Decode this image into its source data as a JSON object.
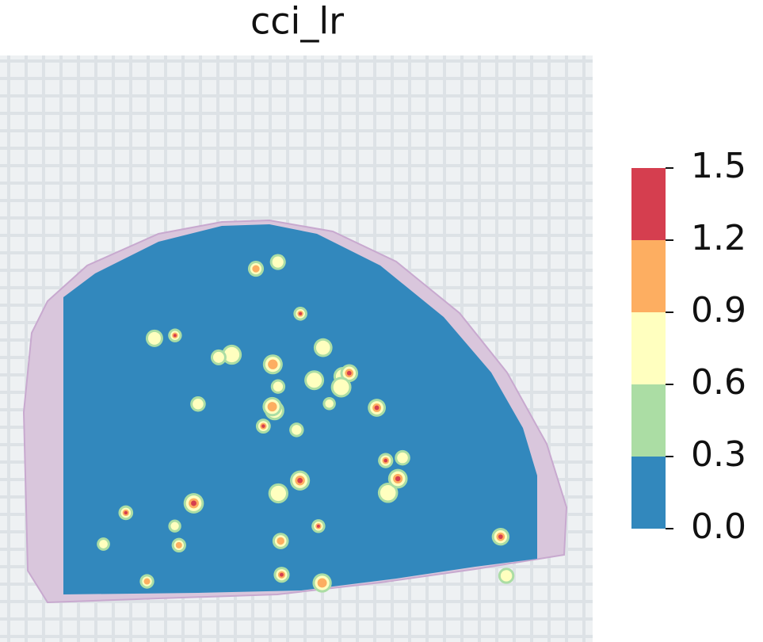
{
  "chart_data": {
    "type": "spatial-contour",
    "title": "cci_lr",
    "colorbar": {
      "lim": [
        0,
        1.5
      ],
      "ticks": [
        {
          "value": 0,
          "label": "0.0"
        },
        0.3,
        0.6,
        0.9,
        1.2,
        1.5
      ],
      "colors": [
        "#3288bd",
        "#abdda4",
        "#ffffbf",
        "#fdae61",
        "#d53e4f"
      ]
    }
  }
}
